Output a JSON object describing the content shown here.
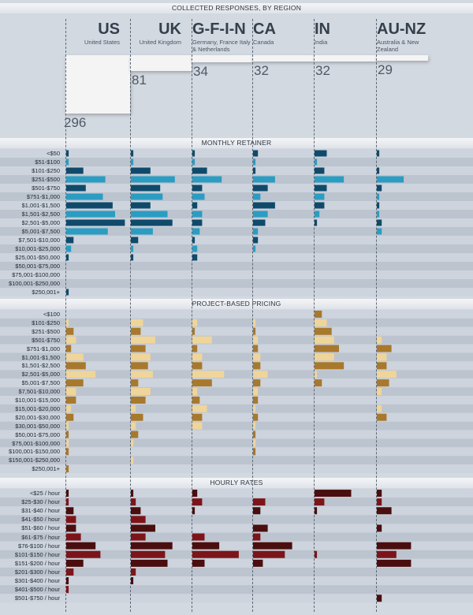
{
  "header": {
    "title": "COLLECTED RESPONSES, BY REGION"
  },
  "regions": [
    {
      "code": "US",
      "name": "United States",
      "responses": 296
    },
    {
      "code": "UK",
      "name": "United Kingdom",
      "responses": 81
    },
    {
      "code": "G-F-I-N",
      "name": "Germany, France Italy & Netherlands",
      "responses": 34
    },
    {
      "code": "CA",
      "name": "Canada",
      "responses": 32
    },
    {
      "code": "IN",
      "name": "India",
      "responses": 32
    },
    {
      "code": "AU-NZ",
      "name": "Australia & New Zealand",
      "responses": 29
    }
  ],
  "colors": {
    "retainer_dark": "#0f4a6b",
    "retainer_light": "#2b9cc2",
    "project_dark": "#a8782c",
    "project_light": "#efd59a",
    "hourly_dark": "#4a0e0e",
    "hourly_light": "#7d1419",
    "count_bar": "#f4f4f4"
  },
  "chart_data": [
    {
      "type": "bar",
      "orientation": "horizontal",
      "title": "COLLECTED RESPONSES, BY REGION",
      "categories": [
        "US",
        "UK",
        "G-F-I-N",
        "CA",
        "IN",
        "AU-NZ"
      ],
      "values": [
        296,
        81,
        34,
        32,
        32,
        29
      ]
    },
    {
      "type": "bar",
      "orientation": "horizontal",
      "title": "MONTHLY RETAINER",
      "unit": "%",
      "categories": [
        "<$50",
        "$51-$100",
        "$101-$250",
        "$251-$500",
        "$501-$750",
        "$751-$1,000",
        "$1,001-$1,500",
        "$1,501-$2,500",
        "$2,501-$5,000",
        "$5,001-$7,500",
        "$7,501-$10,000",
        "$10,001-$25,000",
        "$25,001-$50,000",
        "$50,001-$75,000",
        "$75,001-$100,000",
        "$100,001-$250,000",
        "$250,001+"
      ],
      "series": [
        {
          "name": "US",
          "values": [
            1,
            1,
            7,
            16,
            8,
            15,
            19,
            20,
            24,
            17,
            3,
            2,
            1,
            0,
            0,
            0,
            1
          ]
        },
        {
          "name": "UK",
          "values": [
            1,
            1,
            8,
            18,
            12,
            13,
            8,
            15,
            17,
            9,
            3,
            1,
            1,
            0,
            0,
            0,
            0
          ]
        },
        {
          "name": "G-F-I-N",
          "values": [
            1,
            1,
            6,
            12,
            4,
            5,
            2,
            4,
            4,
            3,
            1,
            2,
            2,
            0,
            0,
            0,
            0
          ]
        },
        {
          "name": "CA",
          "values": [
            2,
            1,
            1,
            9,
            6,
            3,
            9,
            6,
            5,
            2,
            2,
            1,
            0,
            0,
            0,
            0,
            0
          ]
        },
        {
          "name": "IN",
          "values": [
            5,
            1,
            4,
            12,
            5,
            4,
            4,
            2,
            1,
            0,
            0,
            0,
            0,
            0,
            0,
            0,
            0
          ]
        },
        {
          "name": "AU-NZ",
          "values": [
            1,
            0,
            1,
            11,
            2,
            1,
            1,
            1,
            2,
            2,
            0,
            0,
            0,
            0,
            0,
            0,
            0
          ]
        }
      ]
    },
    {
      "type": "bar",
      "orientation": "horizontal",
      "title": "PROJECT-BASED PRICING",
      "unit": "%",
      "categories": [
        "<$100",
        "$101-$250",
        "$251-$500",
        "$501-$750",
        "$751-$1,000",
        "$1,001-$1,500",
        "$1,501-$2,500",
        "$2,501-$5,000",
        "$5,001-$7,500",
        "$7,501-$10,000",
        "$10,001-$15,000",
        "$15,001-$20,000",
        "$20,001-$30,000",
        "$30,001-$50,000",
        "$50,001-$75,000",
        "$75,001-$100,000",
        "$100,001-$150,000",
        "$150,001-$250,000",
        "$250,001+"
      ],
      "series": [
        {
          "name": "US",
          "values": [
            0,
            1,
            3,
            4,
            2,
            7,
            8,
            12,
            7,
            4,
            4,
            2,
            3,
            1,
            1,
            1,
            1,
            0,
            1
          ]
        },
        {
          "name": "UK",
          "values": [
            0,
            5,
            4,
            10,
            6,
            8,
            7,
            9,
            3,
            8,
            6,
            2,
            5,
            2,
            3,
            1,
            0,
            1,
            0
          ]
        },
        {
          "name": "G-F-I-N",
          "values": [
            0,
            2,
            1,
            8,
            2,
            4,
            4,
            13,
            8,
            2,
            3,
            6,
            4,
            4,
            0,
            0,
            0,
            0,
            0
          ]
        },
        {
          "name": "CA",
          "values": [
            0,
            1,
            1,
            2,
            2,
            3,
            3,
            6,
            3,
            2,
            2,
            1,
            2,
            1,
            1,
            1,
            1,
            0,
            0
          ]
        },
        {
          "name": "IN",
          "values": [
            3,
            5,
            7,
            8,
            10,
            8,
            12,
            1,
            3,
            0,
            0,
            0,
            0,
            0,
            0,
            0,
            0,
            0,
            0
          ]
        },
        {
          "name": "AU-NZ",
          "values": [
            0,
            0,
            0,
            2,
            6,
            4,
            4,
            8,
            5,
            2,
            0,
            2,
            4,
            0,
            0,
            0,
            0,
            0,
            0
          ]
        }
      ]
    },
    {
      "type": "bar",
      "orientation": "horizontal",
      "title": "HOURLY RATES",
      "unit": "%",
      "categories": [
        "<$25 / hour",
        "$25-$30 / hour",
        "$31-$40 / hour",
        "$41-$50 / hour",
        "$51-$60 / hour",
        "$61-$75 / hour",
        "$76-$100 / hour",
        "$101-$150 / hour",
        "$151-$200 / hour",
        "$201-$300 / hour",
        "$301-$400 / hour",
        "$401-$500 / hour",
        "$501-$750 / hour"
      ],
      "series": [
        {
          "name": "US",
          "values": [
            1,
            1,
            3,
            4,
            4,
            6,
            12,
            14,
            7,
            3,
            1,
            1,
            0
          ]
        },
        {
          "name": "UK",
          "values": [
            1,
            2,
            4,
            6,
            10,
            6,
            17,
            14,
            15,
            2,
            1,
            0,
            0
          ]
        },
        {
          "name": "G-F-I-N",
          "values": [
            2,
            4,
            1,
            0,
            0,
            5,
            11,
            19,
            5,
            0,
            0,
            0,
            0
          ]
        },
        {
          "name": "CA",
          "values": [
            0,
            5,
            3,
            0,
            6,
            3,
            16,
            13,
            4,
            0,
            0,
            0,
            0
          ]
        },
        {
          "name": "IN",
          "values": [
            15,
            4,
            1,
            0,
            0,
            0,
            0,
            1,
            0,
            0,
            0,
            0,
            0
          ]
        },
        {
          "name": "AU-NZ",
          "values": [
            2,
            2,
            6,
            0,
            2,
            0,
            14,
            8,
            14,
            0,
            0,
            0,
            2
          ]
        }
      ]
    }
  ]
}
